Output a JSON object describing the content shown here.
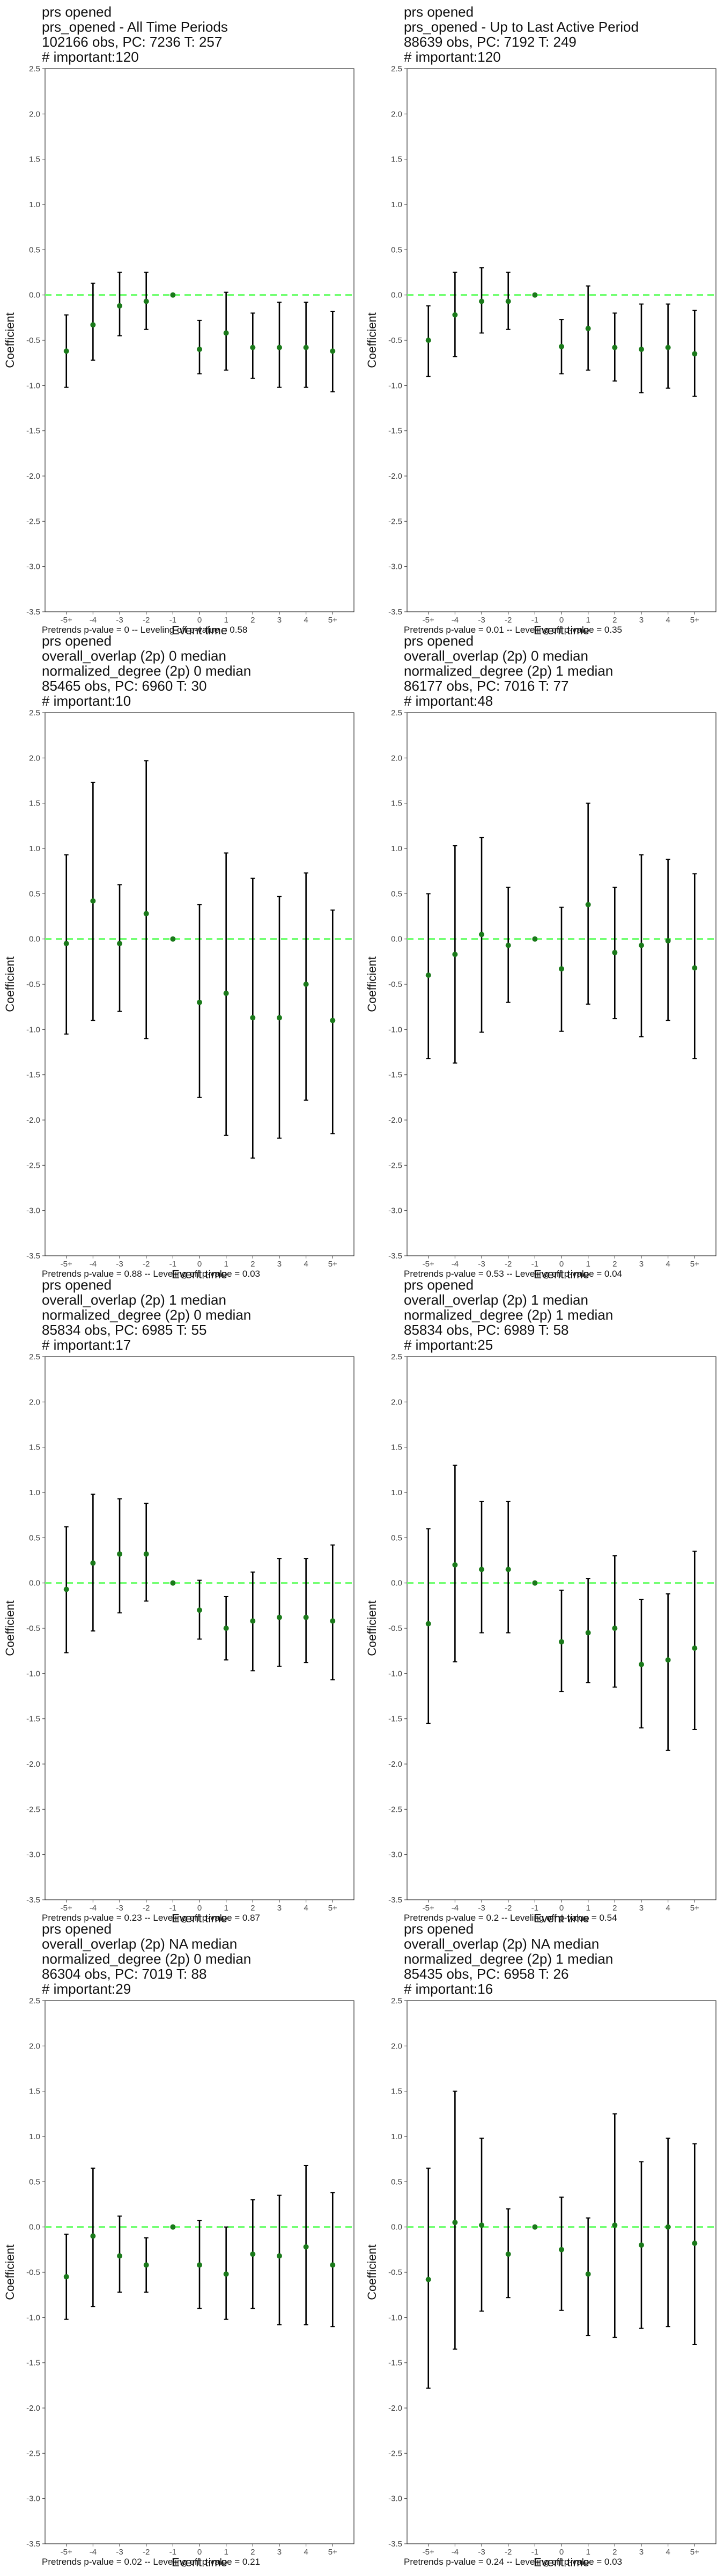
{
  "colors": {
    "point": "#1a7a1a",
    "errorbar": "#000000",
    "zero_line": "#66ff66",
    "frame": "#333333"
  },
  "common": {
    "ylabel": "Coefficient",
    "xlabel": "Event time",
    "ytick_labels": [
      "2.5",
      "2.0",
      "1.5",
      "1.0",
      "0.5",
      "0.0",
      "-0.5",
      "-1.0",
      "-1.5",
      "-2.0",
      "-2.5",
      "-3.0",
      "-3.5"
    ],
    "xtick_labels": [
      "-5+",
      "-4",
      "-3",
      "-2",
      "-1",
      "0",
      "1",
      "2",
      "3",
      "4",
      "5+"
    ]
  },
  "panels": [
    {
      "title_lines": [
        "prs opened",
        "prs_opened - All Time Periods",
        "102166 obs, PC: 7236 T: 257",
        "# important:120"
      ],
      "footer": "Pretrends p-value = 0 -- Leveling off p-value = 0.58"
    },
    {
      "title_lines": [
        "prs opened",
        "prs_opened - Up to Last Active Period",
        "88639 obs, PC: 7192 T: 249",
        "# important:120"
      ],
      "footer": "Pretrends p-value = 0.01 -- Leveling off p-value = 0.35"
    },
    {
      "title_lines": [
        "prs opened",
        "overall_overlap (2p) 0 median",
        "normalized_degree (2p) 0 median",
        "85465 obs, PC: 6960 T: 30",
        "# important:10"
      ],
      "footer": "Pretrends p-value = 0.88 -- Leveling off p-value = 0.03"
    },
    {
      "title_lines": [
        "prs opened",
        "overall_overlap (2p) 0 median",
        "normalized_degree (2p) 1 median",
        "86177 obs, PC: 7016 T: 77",
        "# important:48"
      ],
      "footer": "Pretrends p-value = 0.53 -- Leveling off p-value = 0.04"
    },
    {
      "title_lines": [
        "prs opened",
        "overall_overlap (2p) 1 median",
        "normalized_degree (2p) 0 median",
        "85834 obs, PC: 6985 T: 55",
        "# important:17"
      ],
      "footer": "Pretrends p-value = 0.23 -- Leveling off p-value = 0.87"
    },
    {
      "title_lines": [
        "prs opened",
        "overall_overlap (2p) 1 median",
        "normalized_degree (2p) 1 median",
        "85834 obs, PC: 6989 T: 58",
        "# important:25"
      ],
      "footer": "Pretrends p-value = 0.2 -- Leveling off p-value = 0.54"
    },
    {
      "title_lines": [
        "prs opened",
        "overall_overlap (2p) NA median",
        "normalized_degree (2p) 0 median",
        "86304 obs, PC: 7019 T: 88",
        "# important:29"
      ],
      "footer": "Pretrends p-value = 0.02 -- Leveling off p-value = 0.21"
    },
    {
      "title_lines": [
        "prs opened",
        "overall_overlap (2p) NA median",
        "normalized_degree (2p) 1 median",
        "85435 obs, PC: 6958 T: 26",
        "# important:16"
      ],
      "footer": "Pretrends p-value = 0.24 -- Leveling off p-value = 0.03"
    }
  ],
  "chart_data": [
    {
      "type": "scatter",
      "subtype": "event-study coefficient plot with 95% CI",
      "title": "prs_opened - All Time Periods",
      "xlabel": "Event time",
      "ylabel": "Coefficient",
      "x": [
        "-5+",
        "-4",
        "-3",
        "-2",
        "-1",
        "0",
        "1",
        "2",
        "3",
        "4",
        "5+"
      ],
      "ylim": [
        -3.5,
        2.5
      ],
      "estimate": [
        -0.62,
        -0.33,
        -0.12,
        -0.07,
        0.0,
        -0.6,
        -0.42,
        -0.58,
        -0.58,
        -0.58,
        -0.62
      ],
      "ci_low": [
        -1.02,
        -0.72,
        -0.45,
        -0.38,
        0.0,
        -0.87,
        -0.83,
        -0.92,
        -1.02,
        -1.02,
        -1.07
      ],
      "ci_high": [
        -0.22,
        0.13,
        0.25,
        0.25,
        0.0,
        -0.28,
        0.03,
        -0.2,
        -0.08,
        -0.08,
        -0.18
      ],
      "hline": 0.0
    },
    {
      "type": "scatter",
      "subtype": "event-study coefficient plot with 95% CI",
      "title": "prs_opened - Up to Last Active Period",
      "xlabel": "Event time",
      "ylabel": "Coefficient",
      "x": [
        "-5+",
        "-4",
        "-3",
        "-2",
        "-1",
        "0",
        "1",
        "2",
        "3",
        "4",
        "5+"
      ],
      "ylim": [
        -3.5,
        2.5
      ],
      "estimate": [
        -0.5,
        -0.22,
        -0.07,
        -0.07,
        0.0,
        -0.57,
        -0.37,
        -0.58,
        -0.6,
        -0.58,
        -0.65
      ],
      "ci_low": [
        -0.9,
        -0.68,
        -0.42,
        -0.38,
        0.0,
        -0.87,
        -0.83,
        -0.95,
        -1.08,
        -1.03,
        -1.12
      ],
      "ci_high": [
        -0.12,
        0.25,
        0.3,
        0.25,
        0.0,
        -0.27,
        0.1,
        -0.2,
        -0.1,
        -0.1,
        -0.17
      ],
      "hline": 0.0
    },
    {
      "type": "scatter",
      "subtype": "event-study coefficient plot with 95% CI",
      "title": "overall_overlap (2p) 0 median / normalized_degree (2p) 0 median",
      "xlabel": "Event time",
      "ylabel": "Coefficient",
      "x": [
        "-5+",
        "-4",
        "-3",
        "-2",
        "-1",
        "0",
        "1",
        "2",
        "3",
        "4",
        "5+"
      ],
      "ylim": [
        -3.5,
        2.5
      ],
      "estimate": [
        -0.05,
        0.42,
        -0.05,
        0.28,
        0.0,
        -0.7,
        -0.6,
        -0.87,
        -0.87,
        -0.5,
        -0.9
      ],
      "ci_low": [
        -1.05,
        -0.9,
        -0.8,
        -1.1,
        0.0,
        -1.75,
        -2.17,
        -2.42,
        -2.2,
        -1.78,
        -2.15
      ],
      "ci_high": [
        0.93,
        1.73,
        0.6,
        1.97,
        0.0,
        0.38,
        0.95,
        0.67,
        0.47,
        0.73,
        0.32
      ],
      "hline": 0.0
    },
    {
      "type": "scatter",
      "subtype": "event-study coefficient plot with 95% CI",
      "title": "overall_overlap (2p) 0 median / normalized_degree (2p) 1 median",
      "xlabel": "Event time",
      "ylabel": "Coefficient",
      "x": [
        "-5+",
        "-4",
        "-3",
        "-2",
        "-1",
        "0",
        "1",
        "2",
        "3",
        "4",
        "5+"
      ],
      "ylim": [
        -3.5,
        2.5
      ],
      "estimate": [
        -0.4,
        -0.17,
        0.05,
        -0.07,
        0.0,
        -0.33,
        0.38,
        -0.15,
        -0.07,
        -0.02,
        -0.32
      ],
      "ci_low": [
        -1.32,
        -1.37,
        -1.03,
        -0.7,
        0.0,
        -1.02,
        -0.72,
        -0.88,
        -1.08,
        -0.9,
        -1.32
      ],
      "ci_high": [
        0.5,
        1.03,
        1.12,
        0.57,
        0.0,
        0.35,
        1.5,
        0.57,
        0.93,
        0.88,
        0.72
      ],
      "hline": 0.0
    },
    {
      "type": "scatter",
      "subtype": "event-study coefficient plot with 95% CI",
      "title": "overall_overlap (2p) 1 median / normalized_degree (2p) 0 median",
      "xlabel": "Event time",
      "ylabel": "Coefficient",
      "x": [
        "-5+",
        "-4",
        "-3",
        "-2",
        "-1",
        "0",
        "1",
        "2",
        "3",
        "4",
        "5+"
      ],
      "ylim": [
        -3.5,
        2.5
      ],
      "estimate": [
        -0.07,
        0.22,
        0.32,
        0.32,
        0.0,
        -0.3,
        -0.5,
        -0.42,
        -0.38,
        -0.38,
        -0.42
      ],
      "ci_low": [
        -0.77,
        -0.53,
        -0.33,
        -0.2,
        0.0,
        -0.62,
        -0.85,
        -0.97,
        -0.92,
        -0.88,
        -1.07
      ],
      "ci_high": [
        0.62,
        0.98,
        0.93,
        0.88,
        0.0,
        0.03,
        -0.15,
        0.12,
        0.27,
        0.27,
        0.42
      ],
      "hline": 0.0
    },
    {
      "type": "scatter",
      "subtype": "event-study coefficient plot with 95% CI",
      "title": "overall_overlap (2p) 1 median / normalized_degree (2p) 1 median",
      "xlabel": "Event time",
      "ylabel": "Coefficient",
      "x": [
        "-5+",
        "-4",
        "-3",
        "-2",
        "-1",
        "0",
        "1",
        "2",
        "3",
        "4",
        "5+"
      ],
      "ylim": [
        -3.5,
        2.5
      ],
      "estimate": [
        -0.45,
        0.2,
        0.15,
        0.15,
        0.0,
        -0.65,
        -0.55,
        -0.5,
        -0.9,
        -0.85,
        -0.72
      ],
      "ci_low": [
        -1.55,
        -0.87,
        -0.55,
        -0.55,
        0.0,
        -1.2,
        -1.1,
        -1.15,
        -1.6,
        -1.85,
        -1.62
      ],
      "ci_high": [
        0.6,
        1.3,
        0.9,
        0.9,
        0.0,
        -0.08,
        0.05,
        0.3,
        -0.18,
        -0.12,
        0.35
      ],
      "hline": 0.0
    },
    {
      "type": "scatter",
      "subtype": "event-study coefficient plot with 95% CI",
      "title": "overall_overlap (2p) NA median / normalized_degree (2p) 0 median",
      "xlabel": "Event time",
      "ylabel": "Coefficient",
      "x": [
        "-5+",
        "-4",
        "-3",
        "-2",
        "-1",
        "0",
        "1",
        "2",
        "3",
        "4",
        "5+"
      ],
      "ylim": [
        -3.5,
        2.5
      ],
      "estimate": [
        -0.55,
        -0.1,
        -0.32,
        -0.42,
        0.0,
        -0.42,
        -0.52,
        -0.3,
        -0.32,
        -0.22,
        -0.42
      ],
      "ci_low": [
        -1.02,
        -0.88,
        -0.72,
        -0.72,
        0.0,
        -0.9,
        -1.02,
        -0.9,
        -1.08,
        -1.08,
        -1.1
      ],
      "ci_high": [
        -0.08,
        0.65,
        0.12,
        -0.12,
        0.0,
        0.07,
        0.0,
        0.3,
        0.35,
        0.68,
        0.38
      ],
      "hline": 0.0
    },
    {
      "type": "scatter",
      "subtype": "event-study coefficient plot with 95% CI",
      "title": "overall_overlap (2p) NA median / normalized_degree (2p) 1 median",
      "xlabel": "Event time",
      "ylabel": "Coefficient",
      "x": [
        "-5+",
        "-4",
        "-3",
        "-2",
        "-1",
        "0",
        "1",
        "2",
        "3",
        "4",
        "5+"
      ],
      "ylim": [
        -3.5,
        2.5
      ],
      "estimate": [
        -0.58,
        0.05,
        0.02,
        -0.3,
        0.0,
        -0.25,
        -0.52,
        0.02,
        -0.2,
        0.0,
        -0.18
      ],
      "ci_low": [
        -1.78,
        -1.35,
        -0.93,
        -0.78,
        0.0,
        -0.92,
        -1.2,
        -1.22,
        -1.12,
        -1.1,
        -1.3
      ],
      "ci_high": [
        0.65,
        1.5,
        0.98,
        0.2,
        0.0,
        0.33,
        0.1,
        1.25,
        0.72,
        0.98,
        0.92
      ],
      "hline": 0.0
    }
  ]
}
